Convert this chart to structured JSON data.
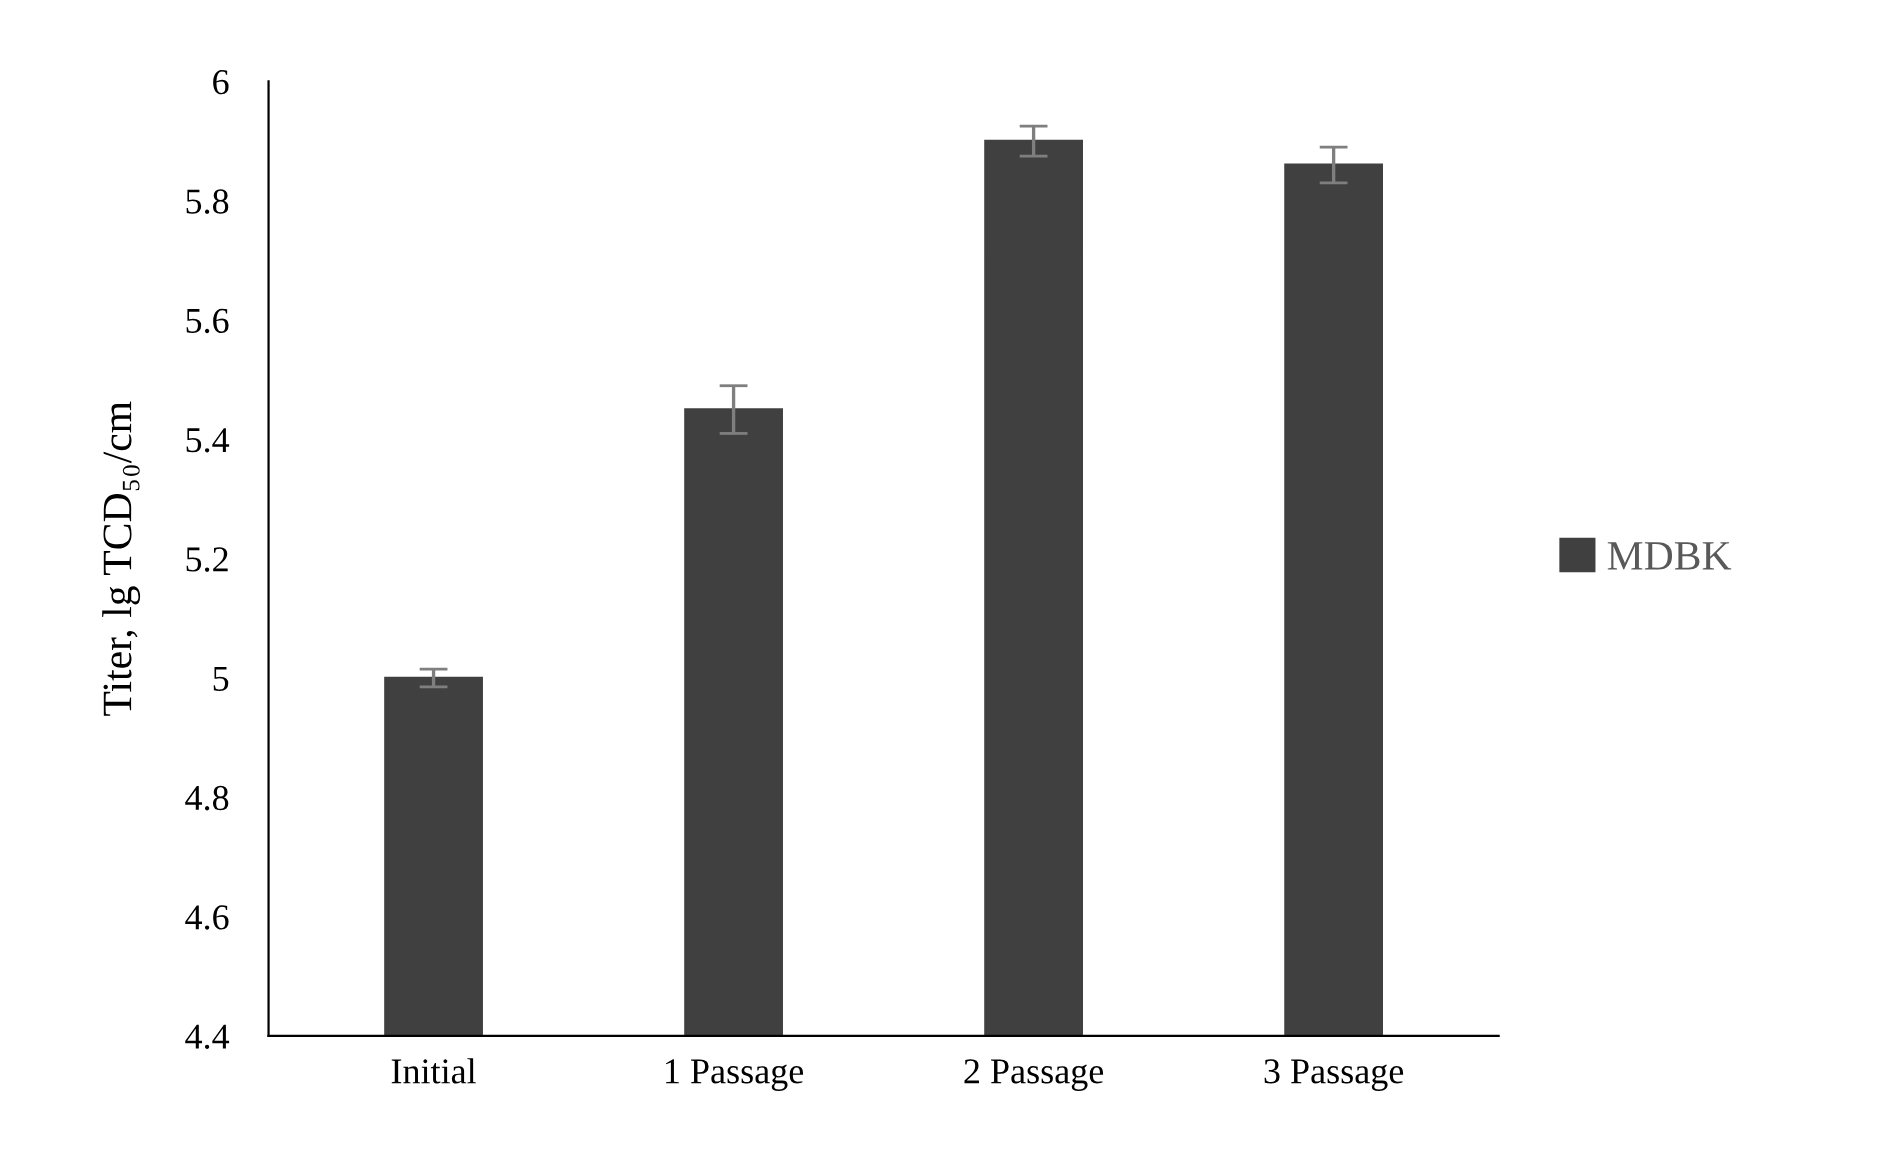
{
  "chart_data": {
    "type": "bar",
    "ylabel": "Titer, lg TCD₅₀/cm",
    "categories": [
      "Initial",
      "1 Passage",
      "2 Passage",
      "3 Passage"
    ],
    "series": [
      {
        "name": "MDBK",
        "color": "#404040",
        "values": [
          5.0,
          5.45,
          5.9,
          5.86
        ],
        "errors": [
          0.015,
          0.04,
          0.025,
          0.03
        ]
      }
    ],
    "ylim": [
      4.4,
      6
    ],
    "yticks": [
      4.4,
      4.6,
      4.8,
      5,
      5.2,
      5.4,
      5.6,
      5.8,
      6
    ],
    "grid": false,
    "legend": "right"
  }
}
